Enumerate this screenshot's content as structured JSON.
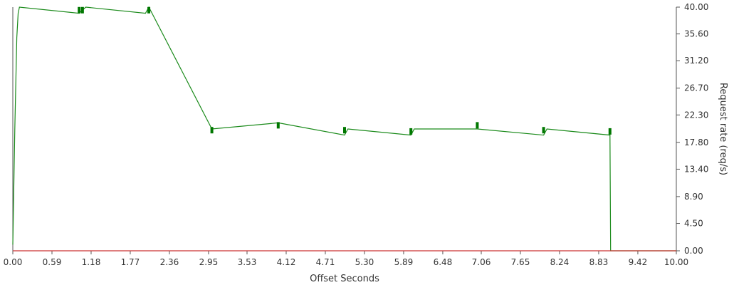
{
  "chart_data": {
    "type": "line",
    "xlabel": "Offset Seconds",
    "ylabel": "Request rate (req/s)",
    "xlim": [
      0,
      10
    ],
    "ylim": [
      0,
      40
    ],
    "x_ticks": [
      "0.00",
      "0.59",
      "1.18",
      "1.77",
      "2.36",
      "2.95",
      "3.53",
      "4.12",
      "4.71",
      "5.30",
      "5.89",
      "6.48",
      "7.06",
      "7.65",
      "8.24",
      "8.83",
      "9.42",
      "10.00"
    ],
    "y_ticks": [
      "0.00",
      "4.50",
      "8.90",
      "13.40",
      "17.80",
      "22.30",
      "26.70",
      "31.20",
      "35.60",
      "40.00"
    ],
    "y_axis_side": "right",
    "grid": false,
    "legend": "none",
    "series": [
      {
        "color": "#1a8a1a",
        "x": [
          0.0,
          0.03,
          0.06,
          0.08,
          0.1,
          1.0,
          1.1,
          2.0,
          2.05,
          3.0,
          4.0,
          5.0,
          5.05,
          6.0,
          6.05,
          7.0,
          8.0,
          8.05,
          9.0,
          9.01,
          10.0
        ],
        "y": [
          1.0,
          20.0,
          35.0,
          39.0,
          40.0,
          39.0,
          40.0,
          39.0,
          40.0,
          20.0,
          21.0,
          19.0,
          20.0,
          19.0,
          20.0,
          20.0,
          19.0,
          20.0,
          19.0,
          0.0,
          0.0
        ]
      },
      {
        "color": "#cc3333",
        "x": [
          0.0,
          10.0
        ],
        "y": [
          0.0,
          0.0
        ]
      }
    ],
    "markers": {
      "color": "#007700",
      "x": [
        1.0,
        1.05,
        2.05,
        3.0,
        4.0,
        5.0,
        6.0,
        7.0,
        8.0,
        9.0
      ],
      "y": [
        39.5,
        39.5,
        39.5,
        19.8,
        20.6,
        19.8,
        19.6,
        20.6,
        19.8,
        19.6
      ]
    }
  }
}
